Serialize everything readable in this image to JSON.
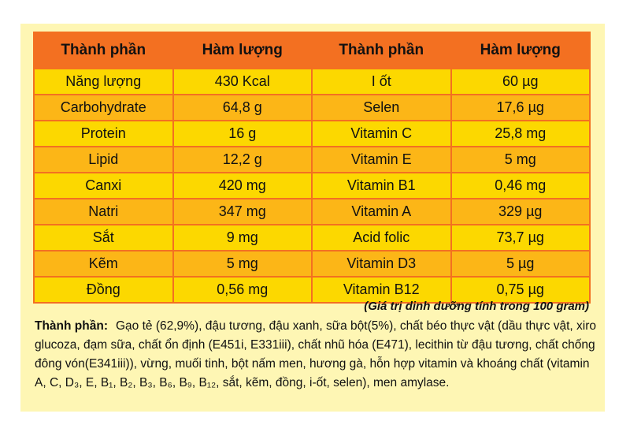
{
  "table": {
    "headers": [
      "Thành phần",
      "Hàm lượng",
      "Thành phần",
      "Hàm lượng"
    ],
    "rows": [
      [
        "Năng lượng",
        "430 Kcal",
        "I ốt",
        "60 µg"
      ],
      [
        "Carbohydrate",
        "64,8 g",
        "Selen",
        "17,6 µg"
      ],
      [
        "Protein",
        "16 g",
        "Vitamin C",
        "25,8 mg"
      ],
      [
        "Lipid",
        "12,2 g",
        "Vitamin E",
        "5 mg"
      ],
      [
        "Canxi",
        "420 mg",
        "Vitamin B1",
        "0,46 mg"
      ],
      [
        "Natri",
        "347 mg",
        "Vitamin A",
        "329 µg"
      ],
      [
        "Sắt",
        "9 mg",
        "Acid folic",
        "73,7 µg"
      ],
      [
        "Kẽm",
        "5 mg",
        "Vitamin D3",
        "5 µg"
      ],
      [
        "Đồng",
        "0,56 mg",
        "Vitamin B12",
        "0,75 µg"
      ]
    ]
  },
  "note": "(Giá trị dinh dưỡng tính trong 100 gram)",
  "ingredients": {
    "label": "Thành phần:",
    "text": "Gạo tẻ (62,9%), đậu tương, đậu xanh, sữa bột(5%), chất béo thực vật (dầu thực vật, xiro glucoza, đạm sữa, chất ổn định (E451i, E331iii), chất nhũ hóa (E471), lecithin từ đậu  tương, chất chống đông vón(E341iii)), vừng, muối tinh, bột nấm men, hương gà,  hỗn hợp vitamin và khoáng chất (vitamin A, C, D₃, E, B₁, B₂, B₃, B₆, B₉, B₁₂, sắt, kẽm, đồng, i-ốt, selen), men amylase."
  },
  "colors": {
    "header": "#F37021",
    "row_a": "#FCD800",
    "row_b": "#FCB617",
    "panel": "#FEF6B4"
  }
}
